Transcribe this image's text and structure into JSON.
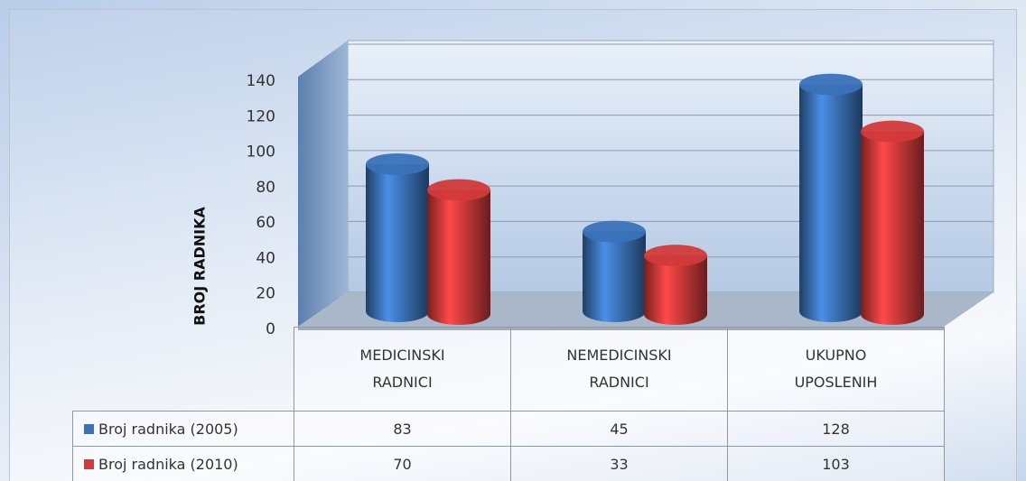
{
  "chart_data": {
    "type": "bar3d",
    "y_label": "BROJ RADNIKA",
    "categories": [
      "MEDICINSKI RADNICI",
      "NEMEDICINSKI RADNICI",
      "UKUPNO UPOSLENIH"
    ],
    "series": [
      {
        "name": "Broj radnika (2005)",
        "color": "#3a72b8",
        "values": [
          83,
          45,
          128
        ]
      },
      {
        "name": "Broj radnika (2010)",
        "color": "#d23a3a",
        "values": [
          70,
          33,
          103
        ]
      }
    ],
    "ylim": [
      0,
      140
    ],
    "yticks": [
      0,
      20,
      40,
      60,
      80,
      100,
      120,
      140
    ],
    "grid": true
  }
}
